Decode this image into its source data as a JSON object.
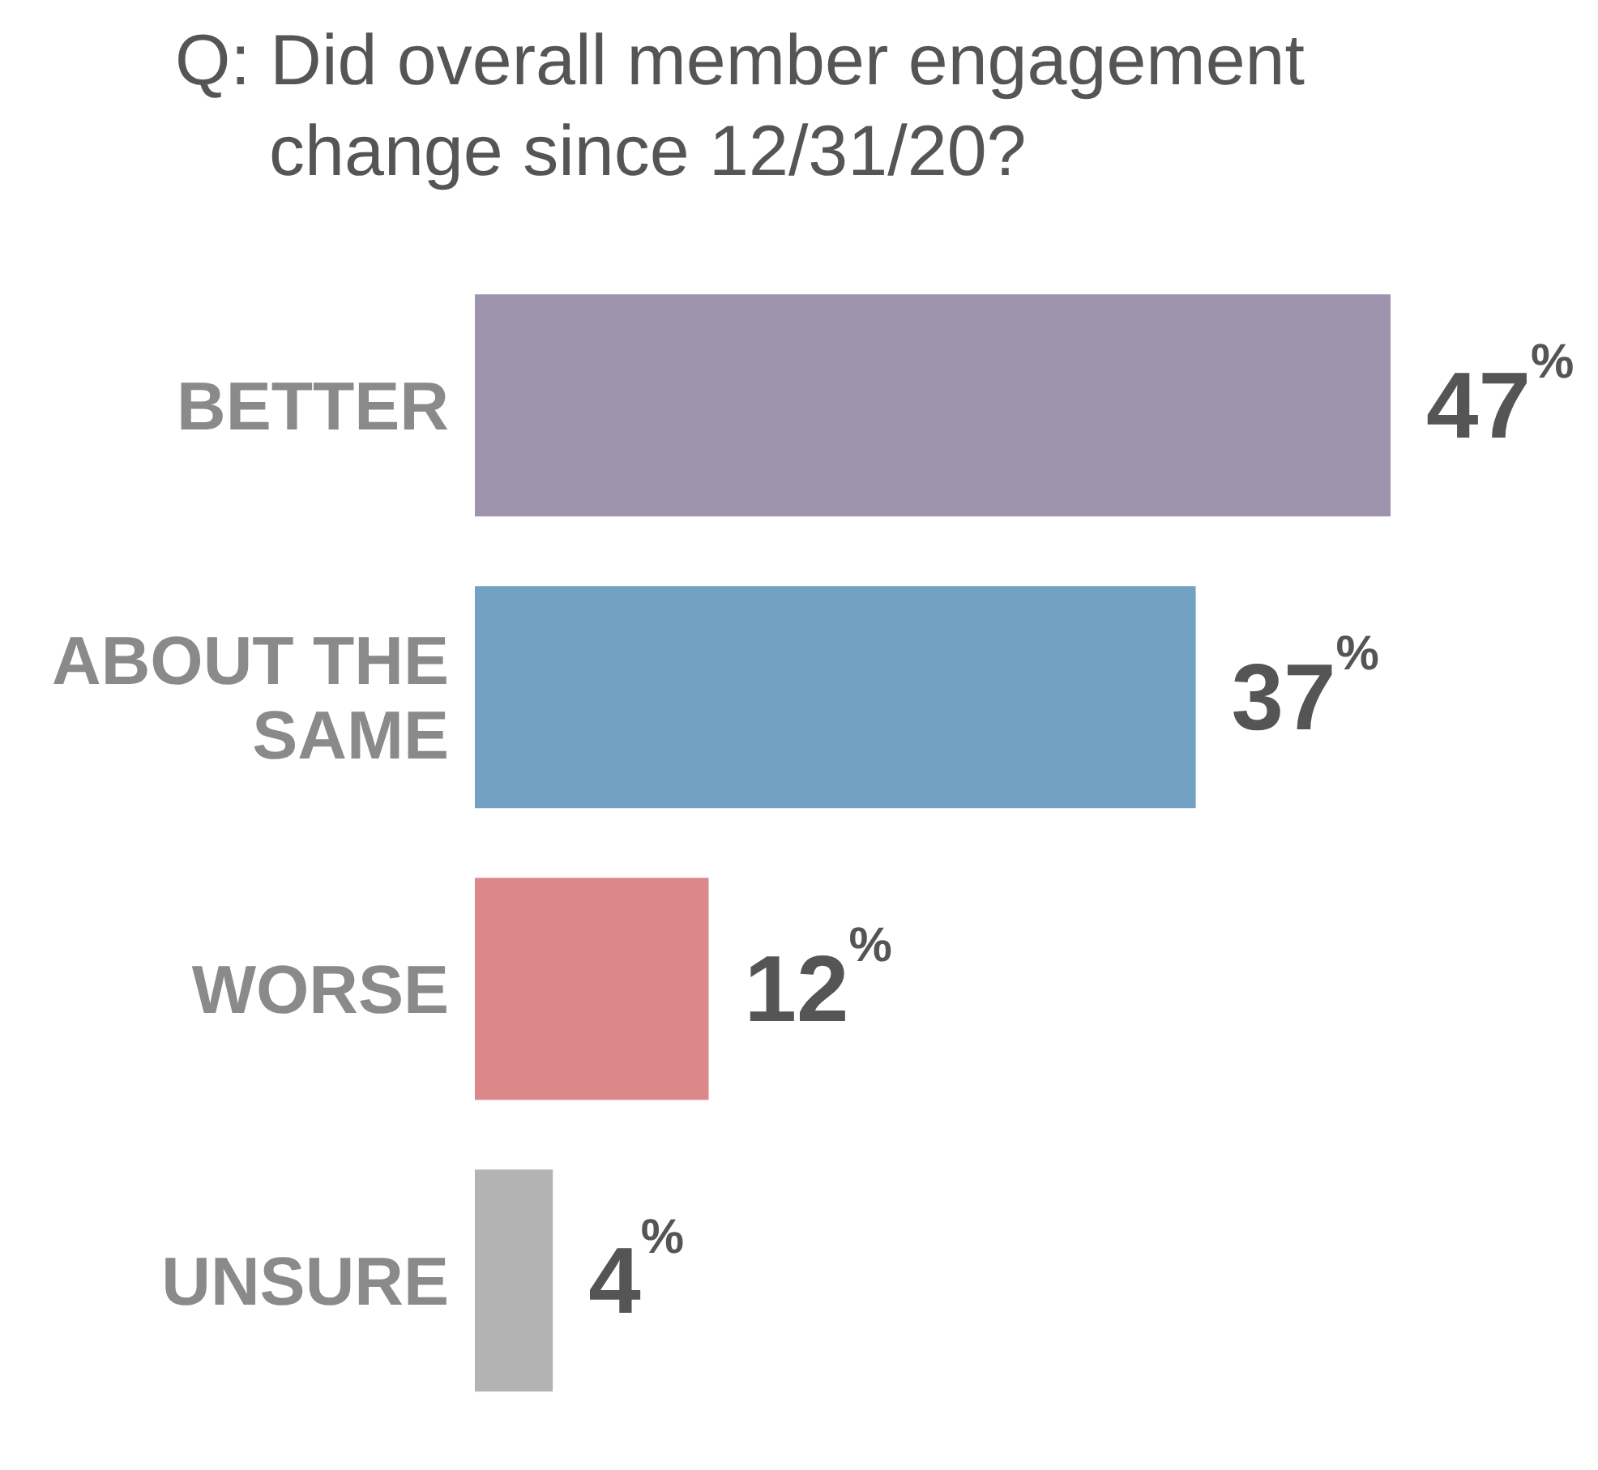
{
  "chart_data": {
    "type": "bar",
    "orientation": "horizontal",
    "title": "Q: Did overall member engagement change since 12/31/20?",
    "categories": [
      "BETTER",
      "ABOUT THE SAME",
      "WORSE",
      "UNSURE"
    ],
    "values": [
      47,
      37,
      12,
      4
    ],
    "colors": [
      "#9d93ac",
      "#73a1c2",
      "#dc8789",
      "#b3b3b3"
    ],
    "value_labels": [
      "47$^{%}$",
      "37$^{%}$",
      "12$^{%}$",
      "4$^{%}$"
    ],
    "xlim": [
      0,
      47
    ],
    "grid": false,
    "legend": false
  }
}
